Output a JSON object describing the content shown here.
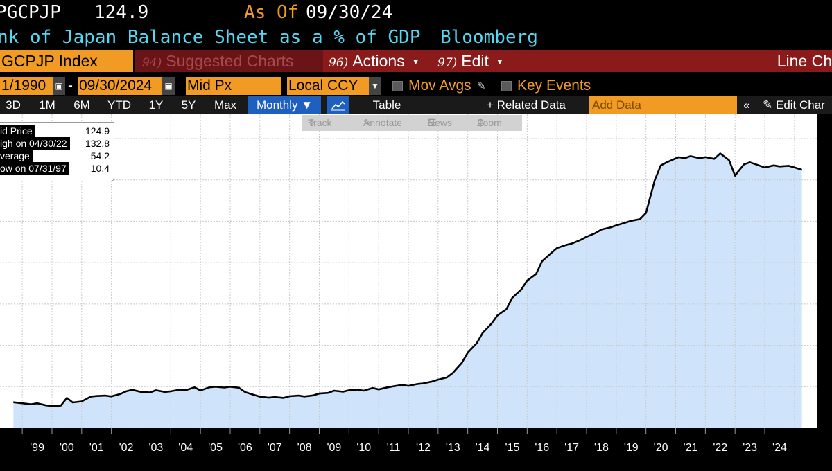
{
  "header": {
    "ticker": "PGCPJP",
    "last_value": "124.9",
    "as_of_label": "As Of",
    "as_of_date": "09/30/24",
    "description": "nk of Japan Balance Sheet as a % of GDP",
    "source": "Bloomberg"
  },
  "menu": {
    "security": "GCPJP Index",
    "suggested_num": "94)",
    "suggested": "Suggested Charts",
    "actions_num": "96)",
    "actions": "Actions",
    "edit_num": "97)",
    "edit": "Edit",
    "chart_type": "Line Ch"
  },
  "controls": {
    "start_date": "1/1990",
    "separator": "-",
    "end_date": "09/30/2024",
    "price_field": "Mid Px",
    "currency": "Local CCY",
    "mov_avgs": "Mov Avgs",
    "key_events": "Key Events"
  },
  "range_buttons": [
    "3D",
    "1M",
    "6M",
    "YTD",
    "1Y",
    "5Y",
    "Max"
  ],
  "frequency": "Monthly",
  "table_label": "Table",
  "related_data": "+ Related Data",
  "add_data_placeholder": "Add Data",
  "edit_chart": "Edit Char",
  "popup": {
    "track": "Track",
    "annotate": "Annotate",
    "news": "News",
    "zoom": "Zoom"
  },
  "legend": {
    "rows": [
      {
        "label": "id Price",
        "value": "124.9"
      },
      {
        "label": "igh on 04/30/22",
        "value": "132.8"
      },
      {
        "label": "verage",
        "value": "54.2"
      },
      {
        "label": "ow on 07/31/97",
        "value": "10.4"
      }
    ]
  },
  "colors": {
    "accent_orange": "#f29b24",
    "menu_red": "#8b1a1a",
    "title_cyan": "#56d7f0",
    "fill_blue": "#cfe4fa",
    "monthly_blue": "#1f5fbf"
  },
  "chart_data": {
    "type": "area",
    "title": "Bank of Japan Balance Sheet as a % of GDP",
    "x_tick_labels": [
      "'99",
      "'00",
      "'01",
      "'02",
      "'03",
      "'04",
      "'05",
      "'06",
      "'07",
      "'08",
      "'09",
      "'10",
      "'11",
      "'12",
      "'13",
      "'14",
      "'15",
      "'16",
      "'17",
      "'18",
      "'19",
      "'20",
      "'21",
      "'22",
      "'23",
      "'24"
    ],
    "x": [
      1998.2,
      1998.5,
      1998.8,
      1999.0,
      1999.3,
      1999.6,
      1999.8,
      2000.0,
      2000.2,
      2000.5,
      2000.8,
      2001.0,
      2001.3,
      2001.5,
      2001.8,
      2002.0,
      2002.2,
      2002.5,
      2002.8,
      2003.0,
      2003.3,
      2003.5,
      2003.8,
      2004.0,
      2004.3,
      2004.5,
      2004.8,
      2005.0,
      2005.3,
      2005.5,
      2005.8,
      2006.0,
      2006.2,
      2006.5,
      2006.8,
      2007.0,
      2007.3,
      2007.5,
      2007.8,
      2008.0,
      2008.3,
      2008.5,
      2008.8,
      2009.0,
      2009.3,
      2009.5,
      2009.8,
      2010.0,
      2010.3,
      2010.5,
      2010.8,
      2011.0,
      2011.3,
      2011.5,
      2011.8,
      2012.0,
      2012.3,
      2012.5,
      2012.8,
      2013.0,
      2013.3,
      2013.5,
      2013.8,
      2014.0,
      2014.3,
      2014.5,
      2014.8,
      2015.0,
      2015.3,
      2015.5,
      2015.8,
      2016.0,
      2016.3,
      2016.5,
      2016.8,
      2017.0,
      2017.3,
      2017.5,
      2017.8,
      2018.0,
      2018.3,
      2018.5,
      2018.8,
      2019.0,
      2019.3,
      2019.5,
      2019.8,
      2020.0,
      2020.2,
      2020.4,
      2020.6,
      2020.8,
      2021.0,
      2021.3,
      2021.5,
      2021.8,
      2022.0,
      2022.3,
      2022.5,
      2022.6,
      2022.8,
      2023.0,
      2023.3,
      2023.5,
      2023.8,
      2024.0,
      2024.3,
      2024.5,
      2024.75
    ],
    "values": [
      12.5,
      12.0,
      11.5,
      12.0,
      11.0,
      10.6,
      10.9,
      14.6,
      12.4,
      12.9,
      15.2,
      15.5,
      15.7,
      15.3,
      16.5,
      17.8,
      18.5,
      17.5,
      17.2,
      18.3,
      17.5,
      17.8,
      18.6,
      18.3,
      19.7,
      18.2,
      19.7,
      20.0,
      19.6,
      20.0,
      19.5,
      17.4,
      16.5,
      15.2,
      14.7,
      15.0,
      14.6,
      15.4,
      15.7,
      15.3,
      15.8,
      16.7,
      17.0,
      18.1,
      17.6,
      18.3,
      18.6,
      18.1,
      19.4,
      18.7,
      19.7,
      20.2,
      20.9,
      20.4,
      21.3,
      21.6,
      22.5,
      23.4,
      24.5,
      26.7,
      31.5,
      36.5,
      41.0,
      46.0,
      50.5,
      54.5,
      57.5,
      63.0,
      67.0,
      71.3,
      74.5,
      80.7,
      84.5,
      87.0,
      88.5,
      89.2,
      91.0,
      92.5,
      94.3,
      96.0,
      97.0,
      98.0,
      99.3,
      100.2,
      101.0,
      104.0,
      120.0,
      127.0,
      128.5,
      129.8,
      131.0,
      130.5,
      131.5,
      130.5,
      131.0,
      130.2,
      132.8,
      129.5,
      122.0,
      124.0,
      127.5,
      128.5,
      127.0,
      126.0,
      127.0,
      126.5,
      126.8,
      126.0,
      124.9
    ],
    "xlim": [
      1997.75,
      2025.25
    ],
    "ylim": [
      0,
      140
    ],
    "grid": true
  }
}
